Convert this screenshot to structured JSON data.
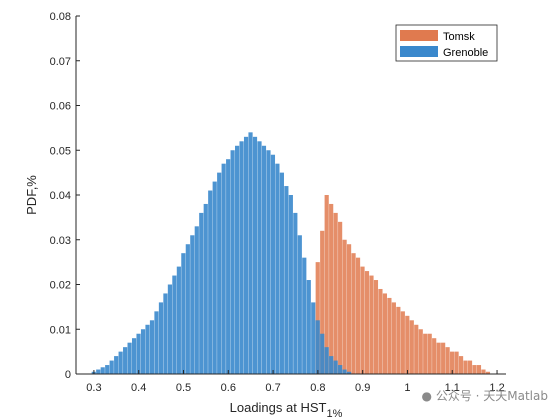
{
  "chart_data": {
    "type": "bar",
    "xlabel": "Loadings at HST",
    "xlabel_subscript": "1%",
    "ylabel": "PDF,%",
    "xlim": [
      0.26,
      1.22
    ],
    "ylim": [
      0,
      0.08
    ],
    "xticks": [
      "0.3",
      "0.4",
      "0.5",
      "0.6",
      "0.7",
      "0.8",
      "0.9",
      "1",
      "1.1",
      "1.2"
    ],
    "yticks": [
      "0",
      "0.01",
      "0.02",
      "0.03",
      "0.04",
      "0.05",
      "0.06",
      "0.07",
      "0.08"
    ],
    "grid": false,
    "legend_position": "top-right",
    "series": [
      {
        "name": "Tomsk",
        "color": "#E07A4F",
        "x": [
          0.8,
          0.81,
          0.82,
          0.83,
          0.84,
          0.85,
          0.86,
          0.87,
          0.88,
          0.89,
          0.9,
          0.91,
          0.92,
          0.93,
          0.94,
          0.95,
          0.96,
          0.97,
          0.98,
          0.99,
          1.0,
          1.01,
          1.02,
          1.03,
          1.04,
          1.05,
          1.06,
          1.07,
          1.08,
          1.09,
          1.1,
          1.11,
          1.12,
          1.13,
          1.14,
          1.15,
          1.16,
          1.17,
          1.18
        ],
        "values": [
          0.025,
          0.032,
          0.04,
          0.038,
          0.036,
          0.034,
          0.03,
          0.029,
          0.027,
          0.026,
          0.024,
          0.023,
          0.022,
          0.021,
          0.019,
          0.018,
          0.017,
          0.016,
          0.015,
          0.014,
          0.013,
          0.012,
          0.011,
          0.01,
          0.009,
          0.009,
          0.008,
          0.007,
          0.007,
          0.006,
          0.005,
          0.005,
          0.004,
          0.003,
          0.003,
          0.002,
          0.002,
          0.001,
          0.0005
        ]
      },
      {
        "name": "Grenoble",
        "color": "#3A88CC",
        "x": [
          0.3,
          0.31,
          0.32,
          0.33,
          0.34,
          0.35,
          0.36,
          0.37,
          0.38,
          0.39,
          0.4,
          0.41,
          0.42,
          0.43,
          0.44,
          0.45,
          0.46,
          0.47,
          0.48,
          0.49,
          0.5,
          0.51,
          0.52,
          0.53,
          0.54,
          0.55,
          0.56,
          0.57,
          0.58,
          0.59,
          0.6,
          0.61,
          0.62,
          0.63,
          0.64,
          0.65,
          0.66,
          0.67,
          0.68,
          0.69,
          0.7,
          0.71,
          0.72,
          0.73,
          0.74,
          0.75,
          0.76,
          0.77,
          0.78,
          0.79,
          0.8,
          0.81,
          0.82,
          0.83,
          0.84,
          0.85,
          0.86,
          0.87
        ],
        "values": [
          0.0005,
          0.001,
          0.0015,
          0.002,
          0.003,
          0.004,
          0.005,
          0.006,
          0.007,
          0.008,
          0.009,
          0.01,
          0.011,
          0.012,
          0.014,
          0.016,
          0.018,
          0.02,
          0.022,
          0.024,
          0.027,
          0.029,
          0.031,
          0.033,
          0.036,
          0.038,
          0.041,
          0.043,
          0.045,
          0.047,
          0.048,
          0.05,
          0.051,
          0.052,
          0.053,
          0.054,
          0.053,
          0.052,
          0.051,
          0.05,
          0.049,
          0.047,
          0.045,
          0.042,
          0.04,
          0.036,
          0.031,
          0.026,
          0.021,
          0.016,
          0.012,
          0.009,
          0.006,
          0.004,
          0.003,
          0.002,
          0.001,
          0.0005
        ]
      }
    ]
  },
  "watermark_text": "公众号 · 天天Matlab"
}
